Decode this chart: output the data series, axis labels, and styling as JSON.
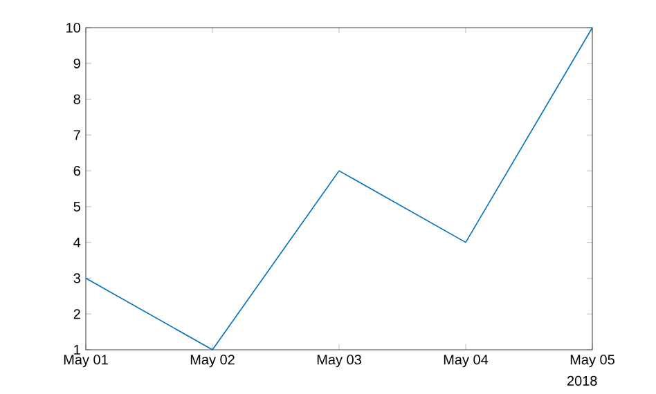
{
  "chart_data": {
    "type": "line",
    "x": [
      "2018-05-01",
      "2018-05-02",
      "2018-05-03",
      "2018-05-04",
      "2018-05-05"
    ],
    "series": [
      {
        "color": "#0072bd",
        "values": [
          3,
          1,
          6,
          4,
          10
        ]
      }
    ],
    "xlim": [
      "2018-05-01",
      "2018-05-05"
    ],
    "xticks": [
      {
        "value": "2018-05-01",
        "label": "May 01"
      },
      {
        "value": "2018-05-02",
        "label": "May 02"
      },
      {
        "value": "2018-05-03",
        "label": "May 03"
      },
      {
        "value": "2018-05-04",
        "label": "May 04"
      },
      {
        "value": "2018-05-05",
        "label": "May 05"
      }
    ],
    "ylim": [
      1,
      10
    ],
    "yticks": [
      1,
      2,
      3,
      4,
      5,
      6,
      7,
      8,
      9,
      10
    ],
    "annotations": [
      "2018"
    ],
    "marker": "none",
    "line_style": "solid"
  }
}
